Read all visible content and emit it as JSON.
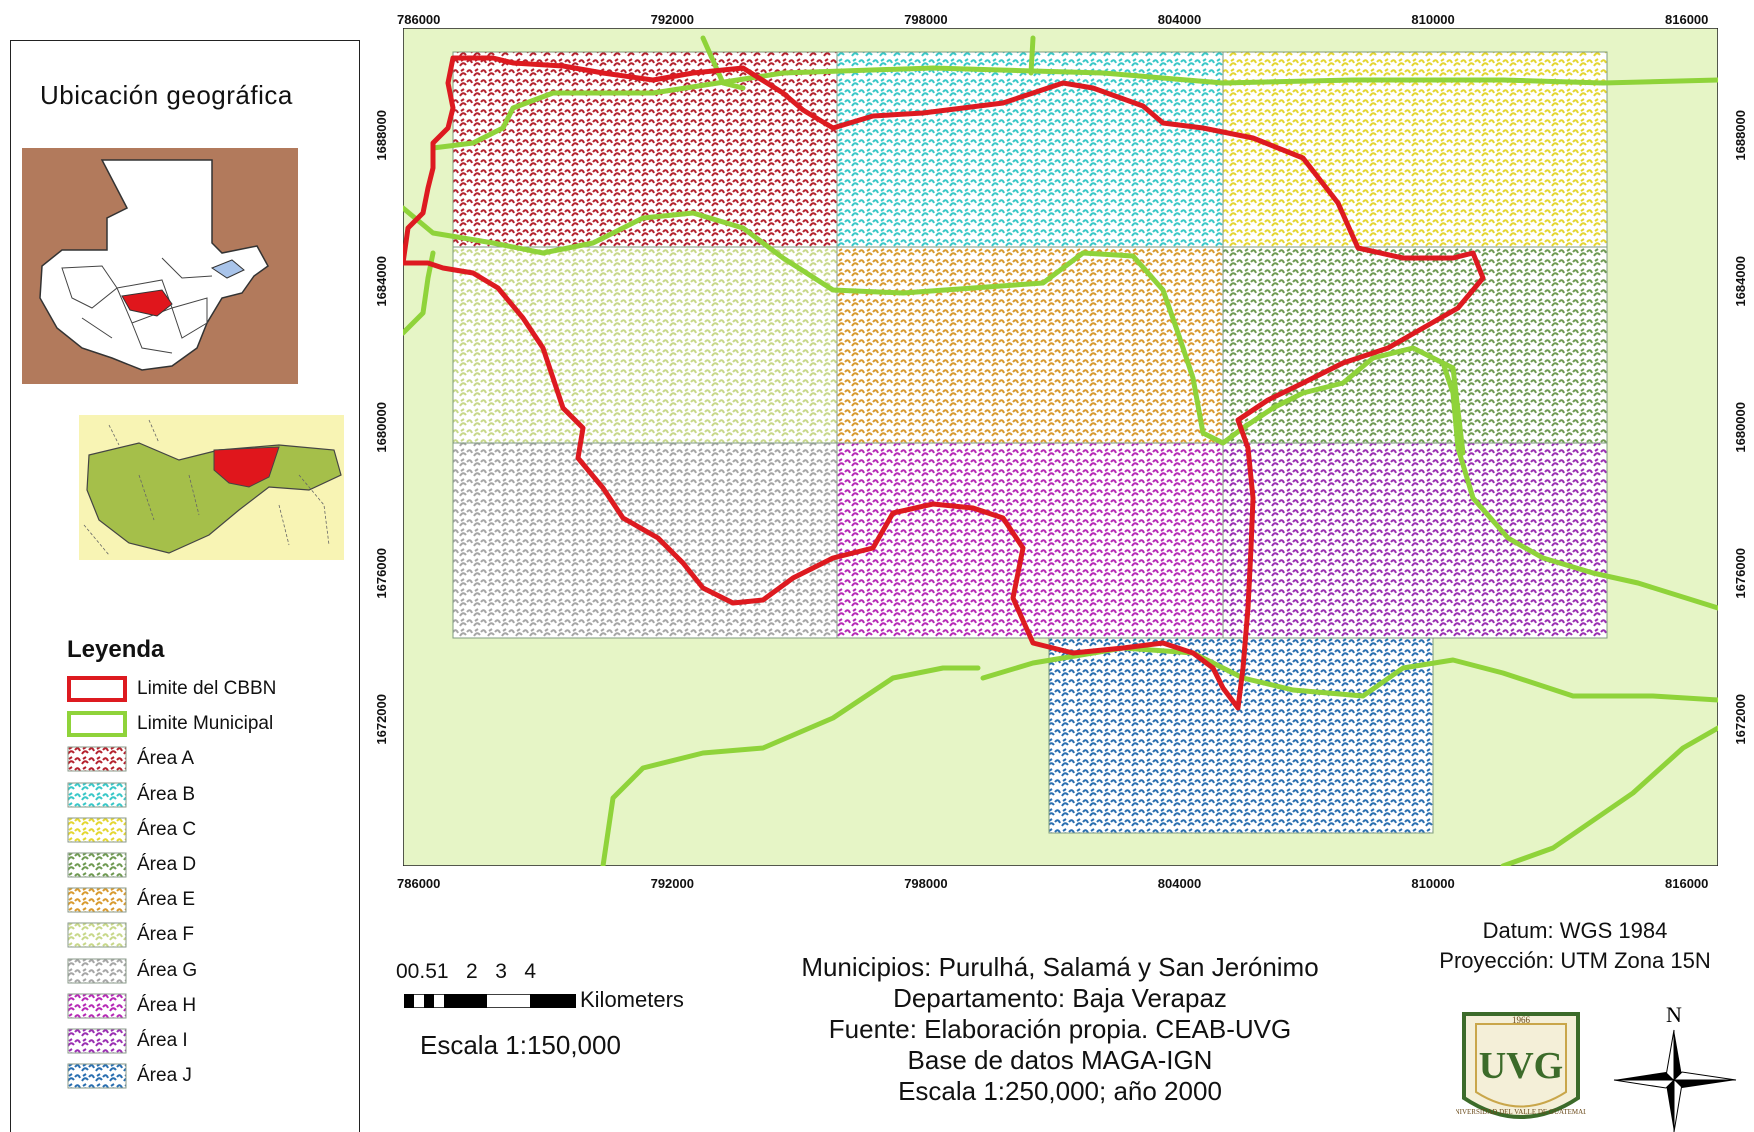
{
  "locator": {
    "title": "Ubicación geográfica"
  },
  "legend": {
    "title": "Leyenda",
    "items": [
      {
        "label": "Limite del CBBN",
        "color": "#dd1a20",
        "kind": "line"
      },
      {
        "label": "Limite Municipal",
        "color": "#8fd33a",
        "kind": "line"
      },
      {
        "label": "Área A",
        "color": "#b4222e",
        "kind": "area"
      },
      {
        "label": "Área B",
        "color": "#39c8c8",
        "kind": "area"
      },
      {
        "label": "Área C",
        "color": "#e4d631",
        "kind": "area"
      },
      {
        "label": "Área D",
        "color": "#6f9a52",
        "kind": "area"
      },
      {
        "label": "Área E",
        "color": "#d89a2f",
        "kind": "area"
      },
      {
        "label": "Área F",
        "color": "#c8d88a",
        "kind": "area"
      },
      {
        "label": "Área G",
        "color": "#a6a6a6",
        "kind": "area"
      },
      {
        "label": "Área H",
        "color": "#b62ab6",
        "kind": "area"
      },
      {
        "label": "Área I",
        "color": "#9a2fb2",
        "kind": "area"
      },
      {
        "label": "Área J",
        "color": "#2a6fb0",
        "kind": "area"
      }
    ]
  },
  "grid": {
    "x_labels": [
      "786000",
      "792000",
      "798000",
      "804000",
      "810000",
      "816000"
    ],
    "y_labels": [
      "1688000",
      "1684000",
      "1680000",
      "1676000",
      "1672000"
    ]
  },
  "scale_bar": {
    "numbers": "00.51   2   3   4",
    "unit": "Kilometers",
    "text": "Escala 1:150,000"
  },
  "info": {
    "line1": "Municipios: Purulhá, Salamá y San Jerónimo",
    "line2": "Departamento: Baja Verapaz",
    "line3": "Fuente: Elaboración propia. CEAB-UVG",
    "line4": "Base de datos MAGA-IGN",
    "line5": "Escala 1:250,000; año 2000"
  },
  "datum": {
    "line1": "Datum: WGS 1984",
    "line2": "Proyección: UTM Zona 15N"
  },
  "logo": {
    "text": "UVG",
    "year": "1966",
    "ring_text": "UNIVERSIDAD DEL VALLE DE GUATEMALA"
  },
  "north_arrow": {
    "label": "N"
  },
  "colors": {
    "map_background": "#e6f5c6",
    "cbbn_line": "#dd1a20",
    "municipal_line": "#8fd33a",
    "locator_bg": "#b27a5c"
  }
}
